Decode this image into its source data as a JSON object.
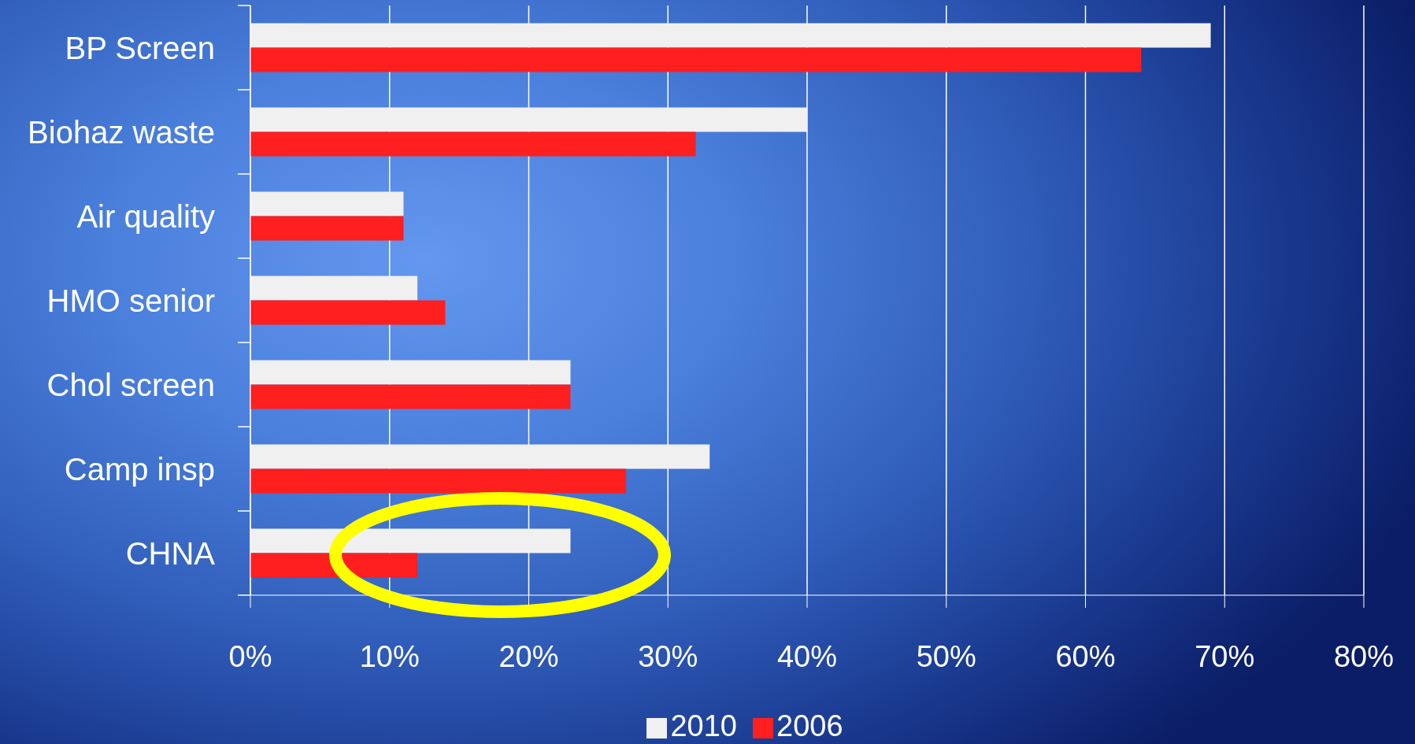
{
  "chart_data": {
    "type": "bar",
    "orientation": "horizontal",
    "categories": [
      "BP Screen",
      "Biohaz waste",
      "Air quality",
      "HMO senior",
      "Chol screen",
      "Camp insp",
      "CHNA"
    ],
    "series": [
      {
        "name": "2010",
        "color": "#f0f0f0",
        "values": [
          69,
          40,
          11,
          12,
          23,
          33,
          23
        ]
      },
      {
        "name": "2006",
        "color": "#ff1f1f",
        "values": [
          64,
          32,
          11,
          14,
          23,
          27,
          12
        ]
      }
    ],
    "xlim": [
      0,
      80
    ],
    "xticks": [
      {
        "value": 0,
        "label": "0%"
      },
      {
        "value": 10,
        "label": "10%"
      },
      {
        "value": 20,
        "label": "20%"
      },
      {
        "value": 30,
        "label": "30%"
      },
      {
        "value": 40,
        "label": "40%"
      },
      {
        "value": 50,
        "label": "50%"
      },
      {
        "value": 60,
        "label": "60%"
      },
      {
        "value": 70,
        "label": "70%"
      },
      {
        "value": 80,
        "label": "80%"
      }
    ],
    "grid": "x",
    "legend": "bottom"
  }
}
